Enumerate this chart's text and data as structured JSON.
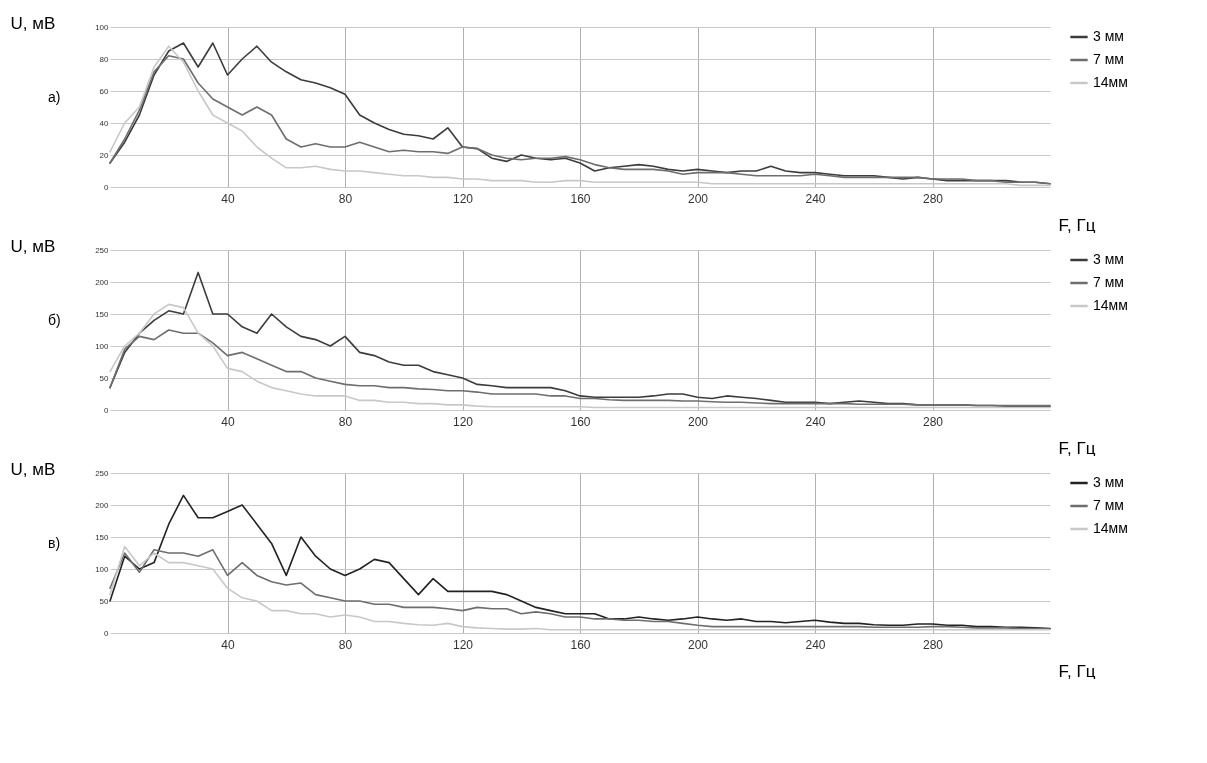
{
  "chart_data": [
    {
      "type": "line",
      "title": "а)",
      "ylabel": "U, мВ",
      "xlabel": "F, Гц",
      "xlim": [
        0,
        320
      ],
      "xticks": [
        40,
        80,
        120,
        160,
        200,
        240,
        280
      ],
      "ylim": [
        0,
        100
      ],
      "yticks": [
        0,
        20,
        40,
        60,
        80,
        100
      ],
      "grid": true,
      "legend": "right",
      "line_style": "solid",
      "x": [
        0,
        5,
        10,
        15,
        20,
        25,
        30,
        35,
        40,
        45,
        50,
        55,
        60,
        65,
        70,
        75,
        80,
        85,
        90,
        95,
        100,
        105,
        110,
        115,
        120,
        125,
        130,
        135,
        140,
        145,
        150,
        155,
        160,
        165,
        170,
        175,
        180,
        185,
        190,
        195,
        200,
        205,
        210,
        215,
        220,
        225,
        230,
        235,
        240,
        245,
        250,
        255,
        260,
        265,
        270,
        275,
        280,
        285,
        290,
        295,
        300,
        305,
        310,
        315,
        320
      ],
      "series": [
        {
          "name": "3 мм",
          "color": "#3c3c3c",
          "values": [
            15,
            28,
            45,
            70,
            85,
            90,
            75,
            90,
            70,
            80,
            88,
            78,
            72,
            67,
            65,
            62,
            58,
            45,
            40,
            36,
            33,
            32,
            30,
            37,
            25,
            24,
            18,
            16,
            20,
            18,
            17,
            18,
            15,
            10,
            12,
            13,
            14,
            13,
            11,
            10,
            11,
            10,
            9,
            10,
            10,
            13,
            10,
            9,
            9,
            8,
            7,
            7,
            7,
            6,
            5,
            6,
            5,
            4,
            4,
            4,
            4,
            4,
            3,
            3,
            2
          ]
        },
        {
          "name": "7 мм",
          "color": "#6e6e6e",
          "values": [
            15,
            30,
            48,
            72,
            82,
            80,
            65,
            55,
            50,
            45,
            50,
            45,
            30,
            25,
            27,
            25,
            25,
            28,
            25,
            22,
            23,
            22,
            22,
            21,
            25,
            24,
            20,
            18,
            17,
            18,
            18,
            19,
            17,
            14,
            12,
            11,
            11,
            11,
            10,
            8,
            9,
            9,
            9,
            8,
            7,
            7,
            7,
            7,
            8,
            7,
            6,
            6,
            6,
            6,
            6,
            6,
            5,
            5,
            5,
            4,
            4,
            3,
            3,
            3,
            2
          ]
        },
        {
          "name": "14мм",
          "color": "#c8c8c8",
          "values": [
            22,
            40,
            50,
            75,
            88,
            78,
            60,
            45,
            40,
            35,
            25,
            18,
            12,
            12,
            13,
            11,
            10,
            10,
            9,
            8,
            7,
            7,
            6,
            6,
            5,
            5,
            4,
            4,
            4,
            3,
            3,
            4,
            4,
            3,
            3,
            3,
            3,
            3,
            3,
            3,
            3,
            2,
            2,
            2,
            2,
            2,
            2,
            2,
            2,
            2,
            2,
            2,
            2,
            2,
            2,
            2,
            2,
            2,
            2,
            2,
            2,
            2,
            1,
            1,
            1
          ]
        }
      ]
    },
    {
      "type": "line",
      "title": "б)",
      "ylabel": "U, мВ",
      "xlabel": "F, Гц",
      "xlim": [
        0,
        320
      ],
      "xticks": [
        40,
        80,
        120,
        160,
        200,
        240,
        280
      ],
      "ylim": [
        0,
        250
      ],
      "yticks": [
        0,
        50,
        100,
        150,
        200,
        250
      ],
      "grid": true,
      "legend": "right",
      "line_style": "solid",
      "x": [
        0,
        5,
        10,
        15,
        20,
        25,
        30,
        35,
        40,
        45,
        50,
        55,
        60,
        65,
        70,
        75,
        80,
        85,
        90,
        95,
        100,
        105,
        110,
        115,
        120,
        125,
        130,
        135,
        140,
        145,
        150,
        155,
        160,
        165,
        170,
        175,
        180,
        185,
        190,
        195,
        200,
        205,
        210,
        215,
        220,
        225,
        230,
        235,
        240,
        245,
        250,
        255,
        260,
        265,
        270,
        275,
        280,
        285,
        290,
        295,
        300,
        305,
        310,
        315,
        320
      ],
      "series": [
        {
          "name": "3 мм",
          "color": "#3c3c3c",
          "values": [
            35,
            90,
            120,
            140,
            155,
            150,
            215,
            150,
            150,
            130,
            120,
            150,
            130,
            115,
            110,
            100,
            115,
            90,
            85,
            75,
            70,
            70,
            60,
            55,
            50,
            40,
            38,
            35,
            35,
            35,
            35,
            30,
            22,
            20,
            20,
            20,
            20,
            22,
            25,
            25,
            20,
            18,
            22,
            20,
            18,
            15,
            12,
            12,
            12,
            10,
            12,
            14,
            12,
            10,
            10,
            8,
            8,
            8,
            8,
            7,
            7,
            6,
            6,
            6,
            6
          ]
        },
        {
          "name": "7 мм",
          "color": "#6e6e6e",
          "values": [
            35,
            95,
            115,
            110,
            125,
            120,
            120,
            105,
            85,
            90,
            80,
            70,
            60,
            60,
            50,
            45,
            40,
            38,
            38,
            35,
            35,
            33,
            32,
            30,
            30,
            28,
            25,
            25,
            25,
            25,
            22,
            22,
            18,
            18,
            16,
            15,
            15,
            15,
            15,
            14,
            14,
            13,
            12,
            12,
            11,
            10,
            10,
            10,
            10,
            10,
            10,
            9,
            9,
            9,
            9,
            8,
            8,
            8,
            8,
            7,
            7,
            7,
            7,
            7,
            7
          ]
        },
        {
          "name": "14мм",
          "color": "#c8c8c8",
          "values": [
            60,
            100,
            120,
            150,
            165,
            160,
            120,
            100,
            65,
            60,
            45,
            35,
            30,
            25,
            22,
            22,
            22,
            15,
            15,
            12,
            12,
            10,
            10,
            8,
            8,
            6,
            5,
            5,
            5,
            5,
            5,
            5,
            5,
            4,
            4,
            4,
            4,
            4,
            4,
            4,
            4,
            4,
            4,
            4,
            4,
            4,
            4,
            4,
            4,
            4,
            4,
            4,
            4,
            4,
            4,
            4,
            4,
            4,
            4,
            4,
            4,
            4,
            4,
            4,
            4
          ]
        }
      ]
    },
    {
      "type": "line",
      "title": "в)",
      "ylabel": "U, мВ",
      "xlabel": "F, Гц",
      "xlim": [
        0,
        320
      ],
      "xticks": [
        40,
        80,
        120,
        160,
        200,
        240,
        280
      ],
      "ylim": [
        0,
        250
      ],
      "yticks": [
        0,
        50,
        100,
        150,
        200,
        250
      ],
      "grid": true,
      "legend": "right",
      "line_style": "solid",
      "x": [
        0,
        5,
        10,
        15,
        20,
        25,
        30,
        35,
        40,
        45,
        50,
        55,
        60,
        65,
        70,
        75,
        80,
        85,
        90,
        95,
        100,
        105,
        110,
        115,
        120,
        125,
        130,
        135,
        140,
        145,
        150,
        155,
        160,
        165,
        170,
        175,
        180,
        185,
        190,
        195,
        200,
        205,
        210,
        215,
        220,
        225,
        230,
        235,
        240,
        245,
        250,
        255,
        260,
        265,
        270,
        275,
        280,
        285,
        290,
        295,
        300,
        305,
        310,
        315,
        320
      ],
      "series": [
        {
          "name": "3 мм",
          "color": "#222222",
          "values": [
            50,
            120,
            100,
            110,
            170,
            215,
            180,
            180,
            190,
            200,
            170,
            140,
            90,
            150,
            120,
            100,
            90,
            100,
            115,
            110,
            85,
            60,
            85,
            65,
            65,
            65,
            65,
            60,
            50,
            40,
            35,
            30,
            30,
            30,
            22,
            22,
            25,
            22,
            20,
            22,
            25,
            22,
            20,
            22,
            18,
            18,
            16,
            18,
            20,
            17,
            15,
            15,
            13,
            12,
            12,
            14,
            14,
            12,
            12,
            10,
            10,
            9,
            9,
            8,
            7
          ]
        },
        {
          "name": "7 мм",
          "color": "#6e6e6e",
          "values": [
            70,
            125,
            95,
            130,
            125,
            125,
            120,
            130,
            90,
            110,
            90,
            80,
            75,
            78,
            60,
            55,
            50,
            50,
            45,
            45,
            40,
            40,
            40,
            38,
            35,
            40,
            38,
            38,
            30,
            33,
            30,
            25,
            25,
            22,
            22,
            20,
            20,
            18,
            18,
            15,
            12,
            10,
            10,
            10,
            10,
            10,
            10,
            10,
            10,
            10,
            10,
            10,
            9,
            9,
            9,
            9,
            10,
            10,
            9,
            8,
            8,
            8,
            7,
            7,
            6
          ]
        },
        {
          "name": "14мм",
          "color": "#c8c8c8",
          "values": [
            60,
            135,
            105,
            125,
            110,
            110,
            105,
            100,
            70,
            55,
            50,
            35,
            35,
            30,
            30,
            25,
            28,
            25,
            18,
            18,
            15,
            13,
            12,
            15,
            10,
            8,
            7,
            6,
            6,
            7,
            5,
            5,
            5,
            5,
            5,
            5,
            5,
            5,
            5,
            5,
            5,
            5,
            5,
            5,
            5,
            5,
            5,
            5,
            5,
            5,
            5,
            5,
            5,
            5,
            5,
            5,
            5,
            5,
            5,
            5,
            5,
            5,
            5,
            5,
            5
          ]
        }
      ]
    }
  ]
}
